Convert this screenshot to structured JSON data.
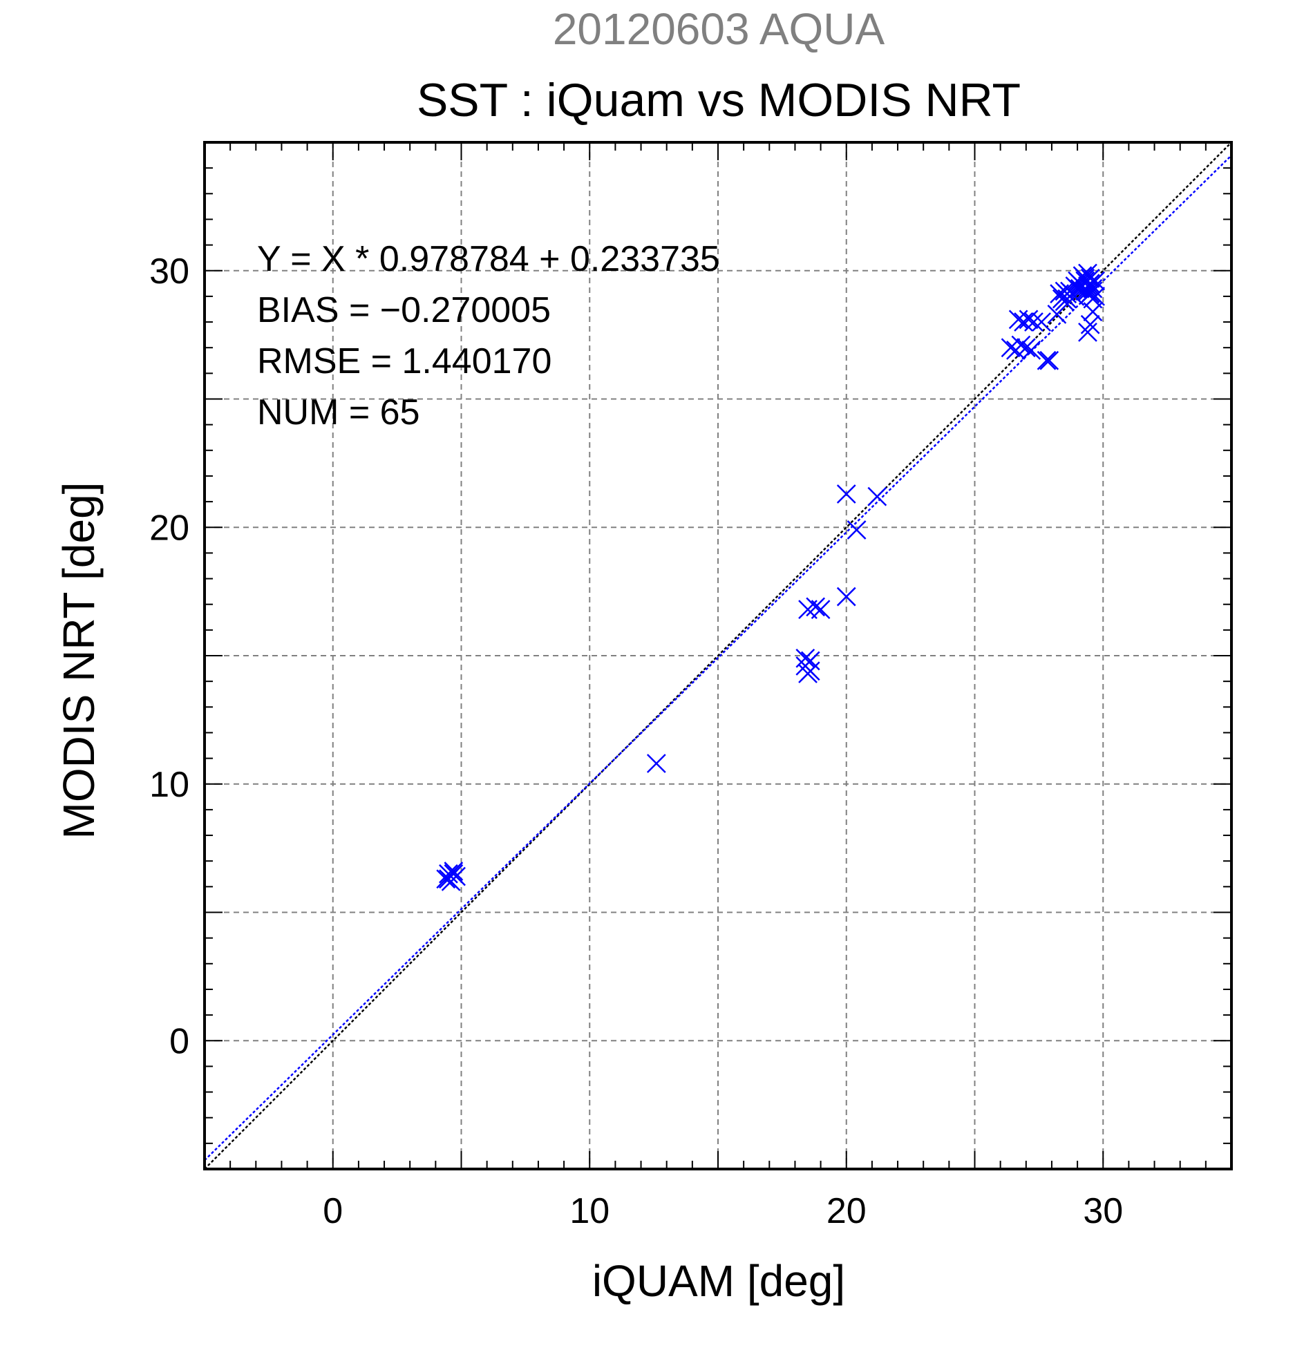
{
  "chart_data": {
    "type": "scatter",
    "date_title": "20120603 AQUA",
    "title": "SST : iQuam vs MODIS NRT",
    "xlabel": "iQUAM [deg]",
    "ylabel": "MODIS NRT [deg]",
    "xlim": [
      -5,
      35
    ],
    "ylim": [
      -5,
      35
    ],
    "xticks": [
      0,
      10,
      20,
      30
    ],
    "yticks": [
      0,
      10,
      20,
      30
    ],
    "grid": true,
    "colors": {
      "points": "#0000ff",
      "fit_line": "#0000ff",
      "identity_line": "#000000",
      "grid": "#808080",
      "date_title": "#808080",
      "text": "#000000"
    },
    "stats": [
      "Y = X * 0.978784 + 0.233735",
      "BIAS = −0.270005",
      "RMSE = 1.440170",
      "NUM = 65"
    ],
    "fit": {
      "slope": 0.978784,
      "intercept": 0.233735
    },
    "identity": {
      "slope": 1,
      "intercept": 0
    },
    "series": [
      {
        "marker": "x",
        "points": [
          [
            4.4,
            6.3
          ],
          [
            4.5,
            6.5
          ],
          [
            4.6,
            6.2
          ],
          [
            4.7,
            6.6
          ],
          [
            4.8,
            6.4
          ],
          [
            4.5,
            6.3
          ],
          [
            4.7,
            6.5
          ],
          [
            12.6,
            10.8
          ],
          [
            18.4,
            14.6
          ],
          [
            18.5,
            14.3
          ],
          [
            18.6,
            14.8
          ],
          [
            18.4,
            14.9
          ],
          [
            18.6,
            14.4
          ],
          [
            18.5,
            16.8
          ],
          [
            18.8,
            16.9
          ],
          [
            19.0,
            16.8
          ],
          [
            20.0,
            17.3
          ],
          [
            20.0,
            21.3
          ],
          [
            20.4,
            19.9
          ],
          [
            21.2,
            21.2
          ],
          [
            26.4,
            27.0
          ],
          [
            26.6,
            26.9
          ],
          [
            26.8,
            27.1
          ],
          [
            27.0,
            27.0
          ],
          [
            27.2,
            26.9
          ],
          [
            26.7,
            28.1
          ],
          [
            26.9,
            28.0
          ],
          [
            27.1,
            28.1
          ],
          [
            27.3,
            28.0
          ],
          [
            27.6,
            28.0
          ],
          [
            27.8,
            26.5
          ],
          [
            27.9,
            26.5
          ],
          [
            28.2,
            28.3
          ],
          [
            28.4,
            28.9
          ],
          [
            28.3,
            29.1
          ],
          [
            28.5,
            29.2
          ],
          [
            28.6,
            28.9
          ],
          [
            28.8,
            29.1
          ],
          [
            28.9,
            29.0
          ],
          [
            29.0,
            29.3
          ],
          [
            29.1,
            29.5
          ],
          [
            29.2,
            29.8
          ],
          [
            29.3,
            29.6
          ],
          [
            29.4,
            29.9
          ],
          [
            29.5,
            29.7
          ],
          [
            29.2,
            29.4
          ],
          [
            29.4,
            29.2
          ],
          [
            29.5,
            29.5
          ],
          [
            29.6,
            29.3
          ],
          [
            29.7,
            29.6
          ],
          [
            29.3,
            29.7
          ],
          [
            29.6,
            28.9
          ],
          [
            29.7,
            29.0
          ],
          [
            29.6,
            28.4
          ],
          [
            29.5,
            27.9
          ],
          [
            29.4,
            27.6
          ],
          [
            29.1,
            29.3
          ],
          [
            28.7,
            29.2
          ],
          [
            28.9,
            29.4
          ],
          [
            29.0,
            29.6
          ],
          [
            29.5,
            29.1
          ],
          [
            29.4,
            29.4
          ],
          [
            28.6,
            29.1
          ],
          [
            28.5,
            28.8
          ],
          [
            29.3,
            29.2
          ]
        ]
      }
    ]
  }
}
